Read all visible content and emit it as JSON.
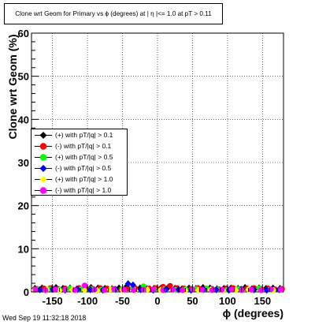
{
  "title": "Clone wrt Geom for Primary vs ϕ (degrees) at | η |<= 1.0 at pT > 0.11",
  "footer": "Wed Sep 19 11:32:18 2018",
  "chart_data": {
    "type": "scatter",
    "xlabel": "ϕ (degrees)",
    "ylabel": "Clone wrt Geom (%)",
    "xlim": [
      -180,
      180
    ],
    "ylim": [
      0,
      60
    ],
    "xticks": [
      "-150",
      "-100",
      "-50",
      "0",
      "50",
      "100",
      "150"
    ],
    "yticks": [
      "0",
      "10",
      "20",
      "30",
      "40",
      "50",
      "60"
    ],
    "legend_position": "left-middle",
    "series": [
      {
        "name": "(+) with pT/|q| > 0.1",
        "color": "#000000",
        "marker": "diamond",
        "x": [
          -175,
          -165,
          -155,
          -145,
          -135,
          -125,
          -115,
          -105,
          -95,
          -85,
          -75,
          -65,
          -55,
          -45,
          -35,
          -25,
          -15,
          -5,
          5,
          15,
          25,
          35,
          45,
          55,
          65,
          75,
          85,
          95,
          105,
          115,
          125,
          135,
          145,
          155,
          165,
          175
        ],
        "y": [
          0.8,
          0.9,
          0.7,
          1.0,
          0.8,
          0.9,
          0.7,
          0.8,
          1.0,
          0.9,
          0.8,
          0.7,
          0.9,
          1.1,
          0.8,
          0.9,
          0.7,
          0.8,
          0.9,
          1.0,
          0.8,
          0.7,
          0.9,
          0.8,
          1.0,
          0.9,
          0.7,
          0.8,
          0.9,
          0.8,
          1.0,
          0.7,
          0.9,
          0.8,
          0.9,
          0.8
        ]
      },
      {
        "name": "(-) with pT/|q| > 0.1",
        "color": "#ff0000",
        "marker": "circle",
        "x": [
          -172,
          -162,
          -152,
          -142,
          -132,
          -122,
          -112,
          -102,
          -92,
          -82,
          -72,
          -62,
          -52,
          -42,
          -32,
          -22,
          -12,
          -2,
          8,
          18,
          28,
          38,
          48,
          58,
          68,
          78,
          88,
          98,
          108,
          118,
          128,
          138,
          148,
          158,
          168,
          178
        ],
        "y": [
          0.7,
          0.8,
          0.9,
          0.7,
          0.8,
          0.6,
          0.9,
          0.8,
          0.7,
          0.9,
          0.8,
          0.7,
          0.6,
          0.8,
          0.9,
          0.7,
          0.8,
          0.9,
          1.2,
          1.4,
          0.9,
          0.8,
          0.7,
          0.9,
          0.8,
          0.7,
          0.6,
          0.8,
          0.9,
          0.7,
          0.8,
          0.9,
          0.7,
          0.8,
          0.6,
          0.7
        ]
      },
      {
        "name": "(+) with pT/|q| > 0.5",
        "color": "#00ff00",
        "marker": "circle",
        "x": [
          -170,
          -155,
          -140,
          -125,
          -110,
          -95,
          -80,
          -65,
          -50,
          -35,
          -20,
          -5,
          10,
          25,
          40,
          55,
          70,
          85,
          100,
          115,
          130,
          145,
          160,
          175
        ],
        "y": [
          0.6,
          0.7,
          0.5,
          0.8,
          0.6,
          0.7,
          0.5,
          0.6,
          0.7,
          0.8,
          1.3,
          0.6,
          0.7,
          0.5,
          0.6,
          0.7,
          0.8,
          0.6,
          0.5,
          0.7,
          0.6,
          0.8,
          0.5,
          0.6
        ]
      },
      {
        "name": "(-) with pT/|q| > 0.5",
        "color": "#0000ff",
        "marker": "diamond",
        "x": [
          -168,
          -150,
          -132,
          -114,
          -96,
          -78,
          -60,
          -42,
          -35,
          -24,
          -6,
          12,
          30,
          48,
          66,
          84,
          102,
          120,
          138,
          156,
          174
        ],
        "y": [
          0.5,
          0.6,
          0.4,
          0.6,
          0.5,
          0.4,
          0.6,
          1.9,
          1.6,
          0.5,
          0.4,
          0.6,
          0.5,
          0.4,
          0.6,
          0.5,
          0.4,
          0.6,
          0.5,
          0.4,
          0.5
        ]
      },
      {
        "name": "(+) with pT/|q| > 1.0",
        "color": "#ffff00",
        "marker": "diamond",
        "x": [
          -176,
          -158,
          -140,
          -122,
          -104,
          -86,
          -68,
          -50,
          -32,
          -14,
          4,
          22,
          40,
          58,
          76,
          94,
          112,
          130,
          148,
          166
        ],
        "y": [
          0.4,
          0.5,
          0.3,
          0.5,
          0.4,
          0.3,
          0.5,
          0.4,
          0.3,
          0.5,
          0.4,
          0.5,
          0.3,
          0.4,
          0.5,
          0.3,
          0.4,
          0.5,
          0.3,
          0.4
        ]
      },
      {
        "name": "(-) with pT/|q| > 1.0",
        "color": "#ff00ff",
        "marker": "circle",
        "x": [
          -174,
          -160,
          -146,
          -132,
          -118,
          -104,
          -90,
          -76,
          -62,
          -48,
          -34,
          -20,
          -6,
          8,
          22,
          36,
          50,
          64,
          78,
          92,
          106,
          120,
          134,
          148,
          162,
          176
        ],
        "y": [
          0.5,
          0.4,
          0.6,
          0.5,
          0.4,
          1.5,
          0.5,
          0.4,
          0.6,
          0.5,
          0.4,
          0.5,
          0.6,
          0.4,
          0.5,
          0.4,
          0.6,
          0.5,
          0.4,
          0.5,
          0.6,
          0.4,
          0.5,
          0.4,
          0.6,
          0.5
        ]
      }
    ]
  }
}
